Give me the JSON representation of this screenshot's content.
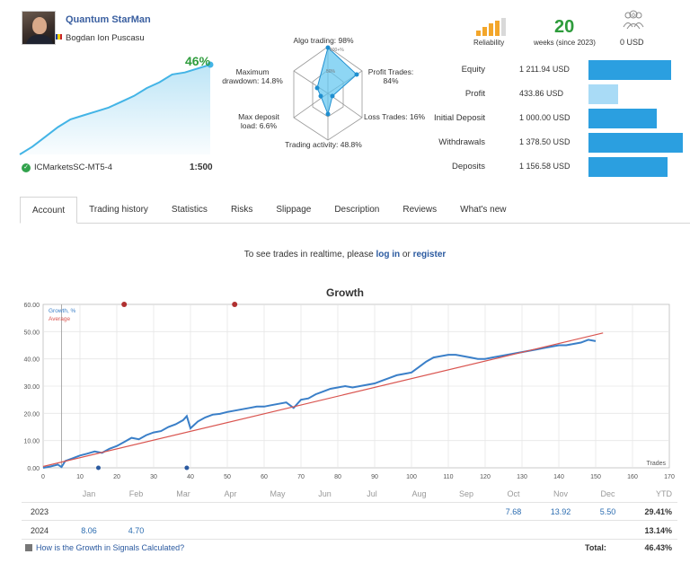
{
  "signal": {
    "name": "Quantum StarMan",
    "author": "Bogdan Ion Puscasu",
    "growth": "46%",
    "broker": "ICMarketsSC-MT5-4",
    "leverage": "1:500"
  },
  "radar": {
    "algo": "Algo trading: 98%",
    "profit_trades": [
      "Profit Trades:",
      "84%"
    ],
    "loss_trades": "Loss Trades: 16%",
    "trading_activity": "Trading activity: 48.8%",
    "max_deposit_load": [
      "Max deposit",
      "load: 6.6%"
    ],
    "max_drawdown": [
      "Maximum",
      "drawdown: 14.8%"
    ],
    "ring_100": "100+%",
    "ring_50": "50%"
  },
  "summary": {
    "reliability_label": "Reliability",
    "weeks": "20",
    "weeks_label": "weeks (since 2023)",
    "subscribers_value": "0 USD",
    "subscribers_count": "0"
  },
  "stats": [
    {
      "label": "Equity",
      "value": "1 211.94 USD",
      "bar": 0.88,
      "color": "#2b9fe0"
    },
    {
      "label": "Profit",
      "value": "433.86 USD",
      "bar": 0.31,
      "color": "#a9dbf6"
    },
    {
      "label": "Initial Deposit",
      "value": "1 000.00 USD",
      "bar": 0.72,
      "color": "#2b9fe0"
    },
    {
      "label": "Withdrawals",
      "value": "1 378.50 USD",
      "bar": 1.0,
      "color": "#2b9fe0"
    },
    {
      "label": "Deposits",
      "value": "1 156.58 USD",
      "bar": 0.84,
      "color": "#2b9fe0"
    }
  ],
  "tabs": [
    "Account",
    "Trading history",
    "Statistics",
    "Risks",
    "Slippage",
    "Description",
    "Reviews",
    "What's new"
  ],
  "realtime": {
    "prefix": "To see trades in realtime, please ",
    "login": "log in",
    "or": " or ",
    "register": "register"
  },
  "chart_data": {
    "type": "line",
    "title": "Growth",
    "xlabel": "Trades",
    "ylabel": "",
    "xlim": [
      0,
      170
    ],
    "ylim": [
      0,
      60
    ],
    "x_ticks": [
      0,
      10,
      20,
      30,
      40,
      50,
      60,
      70,
      80,
      90,
      100,
      110,
      120,
      130,
      140,
      150,
      160,
      170
    ],
    "y_ticks": [
      "0.00",
      "10.00",
      "20.00",
      "30.00",
      "40.00",
      "50.00",
      "60.00"
    ],
    "months": [
      "Jan",
      "Feb",
      "Mar",
      "Apr",
      "May",
      "Jun",
      "Jul",
      "Aug",
      "Sep",
      "Oct",
      "Nov",
      "Dec"
    ],
    "legend": [
      "Growth, %",
      "Average"
    ],
    "series": [
      {
        "name": "Growth, %",
        "color": "#3a7fc8",
        "x": [
          0,
          2,
          4,
          5,
          6,
          8,
          10,
          12,
          14,
          16,
          18,
          20,
          22,
          24,
          26,
          28,
          30,
          32,
          34,
          36,
          38,
          39,
          40,
          42,
          44,
          46,
          48,
          50,
          52,
          54,
          56,
          58,
          60,
          62,
          64,
          66,
          68,
          70,
          72,
          74,
          76,
          78,
          80,
          82,
          84,
          86,
          88,
          90,
          92,
          94,
          96,
          98,
          100,
          102,
          104,
          106,
          108,
          110,
          112,
          114,
          116,
          118,
          120,
          122,
          124,
          126,
          128,
          130,
          132,
          134,
          136,
          138,
          140,
          142,
          144,
          146,
          148,
          150
        ],
        "values": [
          0,
          0.5,
          1.2,
          0.3,
          2.5,
          3.5,
          4.5,
          5.2,
          6,
          5.5,
          7,
          8,
          9.5,
          11,
          10.5,
          12,
          13,
          13.5,
          15,
          16,
          17.5,
          19,
          14.5,
          17,
          18.5,
          19.5,
          19.8,
          20.5,
          21,
          21.5,
          22,
          22.5,
          22.5,
          23,
          23.5,
          24,
          22,
          25,
          25.5,
          27,
          28,
          29,
          29.5,
          30,
          29.5,
          30,
          30.5,
          31,
          32,
          33,
          34,
          34.5,
          35,
          37,
          39,
          40.5,
          41,
          41.5,
          41.5,
          41,
          40.5,
          40,
          40,
          40.5,
          41,
          41.5,
          42,
          42.5,
          43,
          43.5,
          44,
          44.5,
          45,
          45,
          45.5,
          46,
          47,
          46.5
        ]
      },
      {
        "name": "Average",
        "color": "#d9544f",
        "x": [
          0,
          152
        ],
        "values": [
          0.5,
          49.5
        ]
      }
    ],
    "markers_top": [
      22,
      52
    ],
    "markers_bottom": [
      15,
      39
    ]
  },
  "table": {
    "months": [
      "Jan",
      "Feb",
      "Mar",
      "Apr",
      "May",
      "Jun",
      "Jul",
      "Aug",
      "Sep",
      "Oct",
      "Nov",
      "Dec"
    ],
    "ytd_label": "YTD",
    "rows": [
      {
        "year": "2023",
        "values": [
          "",
          "",
          "",
          "",
          "",
          "",
          "",
          "",
          "",
          "7.68",
          "13.92",
          "5.50"
        ],
        "ytd": "29.41%"
      },
      {
        "year": "2024",
        "values": [
          "8.06",
          "4.70",
          "",
          "",
          "",
          "",
          "",
          "",
          "",
          "",
          "",
          ""
        ],
        "ytd": "13.14%"
      }
    ],
    "help_link": "How is the Growth in Signals Calculated?",
    "total_label": "Total:",
    "total_value": "46.43%"
  },
  "mini_growth": [
    0,
    4,
    9,
    14,
    18,
    20,
    22,
    24,
    27,
    30,
    34,
    37,
    41,
    42,
    44,
    46
  ]
}
